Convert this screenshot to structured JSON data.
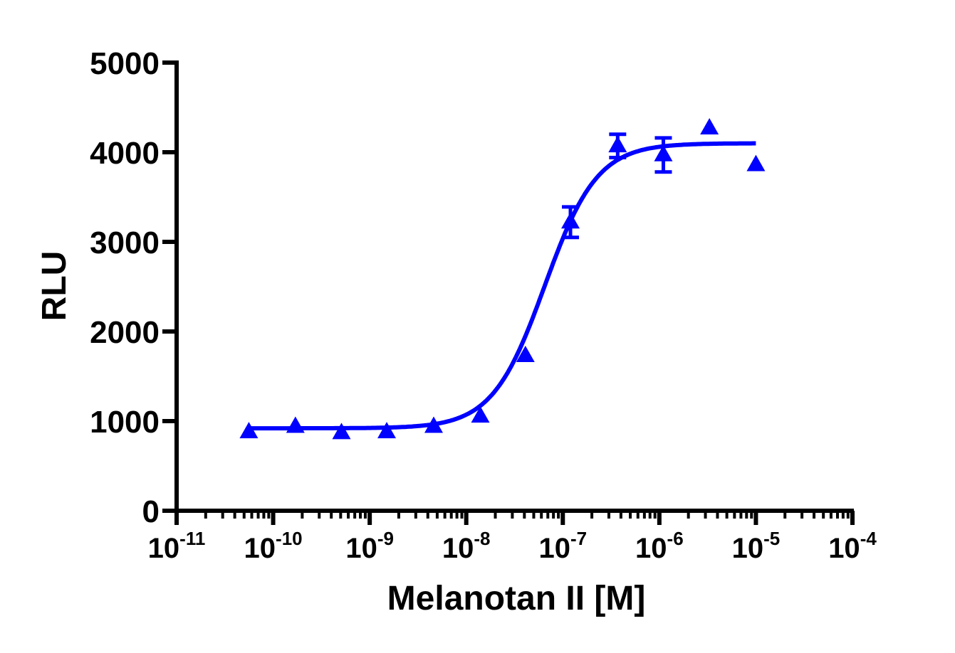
{
  "chart_data": {
    "type": "scatter",
    "title": "",
    "xlabel": "Melanotan II [M]",
    "ylabel": "RLU",
    "xscale": "log",
    "xlim": [
      1e-11,
      0.0001
    ],
    "ylim": [
      0,
      5000
    ],
    "x_tick_labels": [
      {
        "base": "10",
        "exp": "-11"
      },
      {
        "base": "10",
        "exp": "-10"
      },
      {
        "base": "10",
        "exp": "-9"
      },
      {
        "base": "10",
        "exp": "-8"
      },
      {
        "base": "10",
        "exp": "-7"
      },
      {
        "base": "10",
        "exp": "-6"
      },
      {
        "base": "10",
        "exp": "-5"
      },
      {
        "base": "10",
        "exp": "-4"
      }
    ],
    "y_ticks": [
      "0",
      "1000",
      "2000",
      "3000",
      "4000",
      "5000"
    ],
    "grid": false,
    "color": "#0000ff",
    "marker": "triangle",
    "series": [
      {
        "x": [
          5.6e-11,
          1.7e-10,
          5.1e-10,
          1.5e-09,
          4.6e-09,
          1.4e-08,
          4.1e-08,
          1.2e-07,
          3.7e-07,
          1.1e-06,
          3.3e-06,
          1e-05
        ],
        "y": [
          880,
          940,
          870,
          880,
          940,
          1055,
          1730,
          3220,
          4070,
          3970,
          4270,
          3860
        ],
        "error": [
          0,
          0,
          0,
          0,
          0,
          0,
          0,
          170,
          130,
          190,
          0,
          0
        ]
      }
    ],
    "fit": {
      "model": "sigmoidal dose-response",
      "bottom": 920,
      "top": 4100,
      "ec50": 6.5e-08,
      "hill": 1.6,
      "range": [
        5.6e-11,
        1e-05
      ]
    }
  }
}
